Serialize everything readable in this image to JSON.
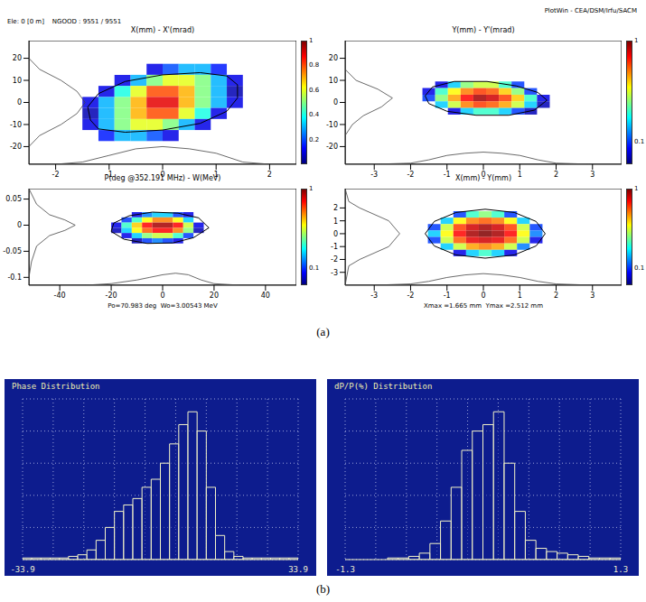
{
  "header": {
    "left": [
      "Ele: 0 [0 m]",
      "NGOOD : 9551 / 9551"
    ],
    "right": "PlotWin - CEA/DSM/Irfu/SACM"
  },
  "panel_labels": [
    "(a)",
    "(b)"
  ],
  "chart_data": [
    {
      "type": "scatter",
      "title": "X(mm) - X'(mrad)",
      "xlim": [
        -2.5,
        2.5
      ],
      "xticks": [
        -2,
        -1,
        0,
        1,
        2
      ],
      "ylim": [
        -28,
        28
      ],
      "yticks": [
        -20,
        -10,
        0,
        10,
        20
      ],
      "colorbar": {
        "range": [
          0,
          1
        ],
        "ticks": [
          0.2,
          0.4,
          0.6,
          0.8,
          1
        ],
        "log": false
      },
      "cells": {
        "x": [
          -1.35,
          -1.05,
          -0.75,
          -0.45,
          -0.15,
          0.15,
          0.45,
          0.75,
          1.05,
          1.35
        ],
        "y": [
          15,
          10,
          5,
          0,
          -5,
          -10,
          -15
        ],
        "values": [
          [
            0,
            0,
            0,
            0,
            0.1,
            0.2,
            0.3,
            0.3,
            0.15,
            0
          ],
          [
            0,
            0,
            0.1,
            0.3,
            0.5,
            0.6,
            0.6,
            0.5,
            0.3,
            0.1
          ],
          [
            0,
            0.1,
            0.4,
            0.6,
            0.8,
            0.8,
            0.7,
            0.5,
            0.3,
            0.05
          ],
          [
            0.1,
            0.3,
            0.5,
            0.7,
            0.9,
            0.9,
            0.7,
            0.5,
            0.3,
            0.1
          ],
          [
            0.05,
            0.3,
            0.5,
            0.7,
            0.8,
            0.8,
            0.6,
            0.4,
            0.1,
            0
          ],
          [
            0.1,
            0.3,
            0.5,
            0.6,
            0.6,
            0.5,
            0.3,
            0.1,
            0,
            0
          ],
          [
            0,
            0.15,
            0.3,
            0.3,
            0.2,
            0.1,
            0,
            0,
            0,
            0
          ]
        ]
      },
      "ellipse": {
        "x": [
          1.4,
          1.2,
          0.7,
          0,
          -0.7,
          -1.2,
          -1.4,
          -1.35,
          -1.2,
          -0.7,
          0,
          0.7,
          1.2,
          1.4,
          1.4
        ],
        "y": [
          8,
          12,
          13.5,
          12.5,
          9.5,
          4,
          -2,
          -8,
          -12,
          -13.5,
          -12.5,
          -9.5,
          -4,
          2,
          8
        ]
      },
      "profiles": [
        {
          "x": [
            -2.5,
            -2,
            -1.5,
            -1,
            -0.5,
            0,
            0.5,
            1,
            1.5,
            2,
            2.5
          ],
          "y": [
            -28,
            -28,
            -27,
            -24,
            -21,
            -20,
            -21,
            -23,
            -27,
            -28,
            -28
          ]
        },
        {
          "x": [
            -2.5,
            -2.3,
            -1.9,
            -1.6,
            -1.45,
            -1.6,
            -1.9,
            -2.3,
            -2.5
          ],
          "y": [
            20,
            15,
            10,
            5,
            0,
            -5,
            -10,
            -15,
            -20
          ]
        }
      ]
    },
    {
      "type": "scatter",
      "title": "Y(mm) - Y'(mrad)",
      "xlim": [
        -3.8,
        3.8
      ],
      "xticks": [
        -3,
        -2,
        -1,
        0,
        1,
        2,
        3
      ],
      "ylim": [
        -28,
        28
      ],
      "yticks": [
        -20,
        -10,
        0,
        10,
        20
      ],
      "colorbar": {
        "range": [
          0.06,
          1
        ],
        "ticks": [
          0.1,
          1
        ],
        "log": true
      },
      "cells": {
        "x": [
          -1.5,
          -1.15,
          -0.8,
          -0.45,
          -0.1,
          0.25,
          0.6,
          0.95,
          1.3,
          1.65
        ],
        "y": [
          8,
          5,
          2,
          -1,
          -4
        ],
        "values": [
          [
            0,
            0.08,
            0.15,
            0.25,
            0.3,
            0.3,
            0.2,
            0.1,
            0,
            0
          ],
          [
            0.08,
            0.2,
            0.35,
            0.5,
            0.6,
            0.55,
            0.4,
            0.25,
            0.1,
            0
          ],
          [
            0.1,
            0.25,
            0.45,
            0.7,
            0.9,
            0.8,
            0.6,
            0.4,
            0.2,
            0.08
          ],
          [
            0,
            0.15,
            0.3,
            0.5,
            0.6,
            0.55,
            0.45,
            0.3,
            0.15,
            0.07
          ],
          [
            0,
            0,
            0.08,
            0.15,
            0.2,
            0.2,
            0.15,
            0.1,
            0.07,
            0
          ]
        ]
      },
      "ellipse": {
        "x": [
          1.75,
          1.5,
          0.9,
          0.1,
          -0.8,
          -1.4,
          -1.6,
          -1.5,
          -1.0,
          -0.2,
          0.7,
          1.4,
          1.75
        ],
        "y": [
          1,
          4.5,
          7.5,
          9.5,
          9.5,
          7,
          3,
          -0.5,
          -4,
          -5.8,
          -5.8,
          -3.5,
          1
        ]
      },
      "profiles": [
        {
          "x": [
            -3.8,
            -3,
            -2,
            -1.5,
            -1,
            -0.5,
            0,
            0.5,
            1,
            1.5,
            2,
            3,
            3.8
          ],
          "y": [
            -28,
            -28,
            -27.5,
            -26,
            -24,
            -23,
            -22.5,
            -23,
            -24,
            -26,
            -27.5,
            -28,
            -28
          ]
        },
        {
          "x": [
            -3.8,
            -3.5,
            -2.9,
            -2.5,
            -2.8,
            -3.3,
            -3.6,
            -3.8
          ],
          "y": [
            15,
            10,
            6,
            2,
            -2,
            -6,
            -10,
            -15
          ]
        }
      ]
    },
    {
      "type": "scatter",
      "title": "P(deg @352.191 MHz) - W(MeV)",
      "annotation": "Po=70.983 deg  Wo=3.00543 MeV",
      "xlim": [
        -52,
        52
      ],
      "xticks": [
        -40,
        -20,
        0,
        20,
        40
      ],
      "ylim": [
        -0.115,
        0.07
      ],
      "yticks": [
        -0.1,
        -0.05,
        0,
        0.05
      ],
      "colorbar": {
        "range": [
          0.06,
          1
        ],
        "ticks": [
          0.1,
          1
        ],
        "log": true
      },
      "cells": {
        "x": [
          -18,
          -14,
          -10,
          -6,
          -2,
          2,
          6,
          10,
          14
        ],
        "y": [
          0.02,
          0.01,
          0,
          -0.01,
          -0.02,
          -0.03
        ],
        "values": [
          [
            0,
            0,
            0.08,
            0.12,
            0.15,
            0.15,
            0.1,
            0.08,
            0
          ],
          [
            0,
            0.1,
            0.2,
            0.35,
            0.5,
            0.5,
            0.35,
            0.15,
            0
          ],
          [
            0.08,
            0.2,
            0.4,
            0.7,
            0.9,
            0.9,
            0.7,
            0.3,
            0.08
          ],
          [
            0.07,
            0.15,
            0.35,
            0.55,
            0.7,
            0.7,
            0.5,
            0.25,
            0.07
          ],
          [
            0,
            0.08,
            0.15,
            0.25,
            0.3,
            0.3,
            0.2,
            0.1,
            0
          ],
          [
            0,
            0,
            0.07,
            0.1,
            0.12,
            0.1,
            0.08,
            0,
            0
          ]
        ]
      },
      "ellipse": {
        "x": [
          18,
          14,
          6,
          -4,
          -13,
          -19,
          -20,
          -15,
          -6,
          4,
          12,
          18
        ],
        "y": [
          -0.005,
          0.014,
          0.023,
          0.025,
          0.018,
          0.004,
          -0.012,
          -0.027,
          -0.035,
          -0.034,
          -0.024,
          -0.005
        ]
      },
      "profiles": [
        {
          "x": [
            -52,
            -30,
            -20,
            -10,
            -5,
            0,
            5,
            10,
            15,
            20,
            30,
            52
          ],
          "y": [
            -0.115,
            -0.115,
            -0.112,
            -0.105,
            -0.1,
            -0.095,
            -0.092,
            -0.095,
            -0.105,
            -0.112,
            -0.115,
            -0.115
          ]
        },
        {
          "x": [
            -52,
            -49,
            -44,
            -38,
            -34,
            -38,
            -44,
            -49,
            -51,
            -52
          ],
          "y": [
            0.07,
            0.04,
            0.02,
            0.01,
            0,
            -0.01,
            -0.02,
            -0.04,
            -0.07,
            -0.1
          ]
        }
      ]
    },
    {
      "type": "scatter",
      "title": "X(mm) - Y(mm)",
      "annotation": "Xmax =1.665 mm  Ymax =2.512 mm",
      "xlim": [
        -3.8,
        3.8
      ],
      "xticks": [
        -3,
        -2,
        -1,
        0,
        1,
        2,
        3
      ],
      "ylim": [
        -4,
        3.5
      ],
      "yticks": [
        -3,
        -2,
        -1,
        0,
        1,
        2
      ],
      "colorbar": {
        "range": [
          0.06,
          1
        ],
        "ticks": [
          0.1,
          1
        ],
        "log": true
      },
      "cells": {
        "x": [
          -1.35,
          -1.0,
          -0.65,
          -0.3,
          0.05,
          0.4,
          0.75,
          1.1,
          1.45
        ],
        "y": [
          1.5,
          1,
          0.5,
          0,
          -0.5,
          -1,
          -1.5
        ],
        "values": [
          [
            0,
            0,
            0.1,
            0.2,
            0.25,
            0.2,
            0.1,
            0,
            0
          ],
          [
            0,
            0.15,
            0.35,
            0.5,
            0.55,
            0.5,
            0.35,
            0.15,
            0
          ],
          [
            0.1,
            0.3,
            0.6,
            0.8,
            0.9,
            0.8,
            0.6,
            0.3,
            0.1
          ],
          [
            0.15,
            0.35,
            0.7,
            0.9,
            1,
            0.9,
            0.7,
            0.35,
            0.12
          ],
          [
            0.1,
            0.3,
            0.55,
            0.75,
            0.8,
            0.75,
            0.55,
            0.3,
            0.08
          ],
          [
            0,
            0.15,
            0.3,
            0.45,
            0.5,
            0.45,
            0.3,
            0.12,
            0
          ],
          [
            0,
            0,
            0.08,
            0.15,
            0.2,
            0.15,
            0.08,
            0,
            0
          ]
        ]
      },
      "ellipse": {
        "x": [
          1.7,
          1.45,
          0.85,
          0.05,
          -0.75,
          -1.35,
          -1.6,
          -1.35,
          -0.75,
          0.05,
          0.85,
          1.45,
          1.7
        ],
        "y": [
          0,
          0.95,
          1.65,
          1.9,
          1.65,
          0.95,
          0,
          -0.95,
          -1.65,
          -1.9,
          -1.65,
          -0.95,
          0
        ]
      },
      "profiles": [
        {
          "x": [
            -3.8,
            -3,
            -2,
            -1.5,
            -1,
            -0.5,
            0,
            0.5,
            1,
            1.5,
            2,
            3,
            3.8
          ],
          "y": [
            -4,
            -4,
            -3.9,
            -3.7,
            -3.4,
            -3.2,
            -3.1,
            -3.2,
            -3.4,
            -3.7,
            -3.9,
            -4,
            -4
          ]
        },
        {
          "x": [
            -3.8,
            -3.7,
            -3.4,
            -2.6,
            -2.3,
            -2.6,
            -3.4,
            -3.7,
            -3.8
          ],
          "y": [
            3.5,
            2.5,
            2,
            1,
            0,
            -1,
            -2,
            -2.5,
            -4
          ]
        }
      ]
    },
    {
      "type": "histogram",
      "title": "Phase Distribution",
      "color": "#f4f4c8",
      "grid": true,
      "tick_labels": "x",
      "xlim": [
        -33.9,
        33.9
      ],
      "xticks": [
        -33.9,
        33.9
      ],
      "ylim": [
        0,
        100
      ],
      "yticks": [
        0,
        20,
        40,
        60,
        80,
        100
      ],
      "bins": [
        -33.9,
        -31.64,
        -29.38,
        -27.12,
        -24.86,
        -22.6,
        -20.34,
        -18.08,
        -15.82,
        -13.56,
        -11.3,
        -9.04,
        -6.78,
        -4.52,
        -2.26,
        0,
        2.26,
        4.52,
        6.78,
        9.04,
        11.3,
        13.56,
        15.82,
        18.08,
        20.34,
        22.6,
        24.86,
        27.12,
        29.38,
        31.64,
        33.9
      ],
      "values": [
        1,
        1,
        1,
        1,
        1,
        2,
        3,
        6,
        12,
        20,
        30,
        34,
        38,
        45,
        50,
        60,
        72,
        84,
        92,
        80,
        45,
        15,
        5,
        2,
        1,
        1,
        1,
        1,
        1,
        1
      ]
    },
    {
      "type": "histogram",
      "title": "dP/P(%) Distribution",
      "color": "#f4f4c8",
      "grid": true,
      "tick_labels": "x",
      "xlim": [
        -1.3,
        1.3
      ],
      "xticks": [
        -1.3,
        1.3
      ],
      "ylim": [
        0,
        100
      ],
      "yticks": [
        0,
        20,
        40,
        60,
        80,
        100
      ],
      "bins": [
        -1.3,
        -1.2,
        -1.1,
        -1.0,
        -0.9,
        -0.8,
        -0.7,
        -0.6,
        -0.5,
        -0.4,
        -0.3,
        -0.2,
        -0.1,
        0,
        0.1,
        0.2,
        0.3,
        0.4,
        0.5,
        0.6,
        0.7,
        0.8,
        0.9,
        1.0,
        1.1,
        1.2,
        1.3
      ],
      "values": [
        0,
        0,
        0,
        0,
        1,
        1,
        2,
        4,
        10,
        24,
        45,
        68,
        80,
        84,
        92,
        60,
        30,
        12,
        7,
        5,
        4,
        3,
        2,
        1,
        1,
        1
      ]
    }
  ]
}
